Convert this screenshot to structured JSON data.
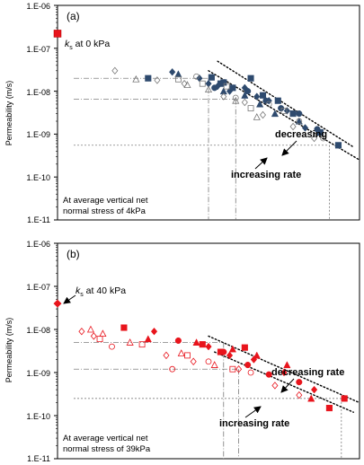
{
  "chart_data": [
    {
      "type": "scatter",
      "panel_label": "(a)",
      "ylabel": "Permeability (m/s)",
      "yscale": "log",
      "ylim": [
        1e-11,
        1e-06
      ],
      "ytick_labels": [
        "1.E-06",
        "1.E-07",
        "1.E-08",
        "1.E-09",
        "1.E-10",
        "1.E-11"
      ],
      "ks_label_sym": "k",
      "ks_label_sub": "s",
      "ks_label_rest": " at 0 kPa",
      "ks_value": 2.2e-07,
      "note_lines": [
        "At average vertical net",
        "normal stress of 4kPa"
      ],
      "annotations": [
        "decreasing",
        "increasing rate"
      ],
      "colors": {
        "filled": "#2e4a6e",
        "open": "#777777",
        "ks": "#e8141c"
      },
      "series": [
        {
          "style": "filled",
          "marker": "square",
          "x": [
            0.3,
            0.51,
            0.54,
            0.55,
            0.58,
            0.64,
            0.68,
            0.73,
            0.78,
            0.87,
            0.93
          ],
          "y": [
            2e-08,
            2.1e-08,
            1.5e-08,
            1.6e-08,
            1.2e-08,
            2e-08,
            8e-09,
            6e-09,
            3e-09,
            1.1e-09,
            5.5e-10
          ]
        },
        {
          "style": "filled",
          "marker": "diamond",
          "x": [
            0.38,
            0.47,
            0.5,
            0.53,
            0.57,
            0.62,
            0.66,
            0.7,
            0.76,
            0.82
          ],
          "y": [
            2.8e-08,
            2e-08,
            1.5e-08,
            1.3e-08,
            1e-08,
            1.2e-08,
            7.5e-09,
            6e-09,
            3.5e-09,
            1.4e-09
          ]
        },
        {
          "style": "filled",
          "marker": "triangle",
          "x": [
            0.4,
            0.55,
            0.62,
            0.67,
            0.72,
            0.8
          ],
          "y": [
            2.5e-08,
            1e-08,
            8e-09,
            5e-09,
            3e-09,
            2e-09
          ]
        },
        {
          "style": "filled",
          "marker": "circle",
          "x": [
            0.52,
            0.63,
            0.69,
            0.74,
            0.8,
            0.86
          ],
          "y": [
            1.2e-08,
            1e-08,
            6e-09,
            4e-09,
            3e-09,
            1.3e-09
          ]
        },
        {
          "style": "open",
          "marker": "diamond",
          "x": [
            0.19,
            0.33,
            0.42,
            0.55,
            0.62,
            0.68,
            0.78,
            0.85
          ],
          "y": [
            3e-08,
            1.8e-08,
            1.5e-08,
            7.5e-09,
            5.5e-09,
            2.8e-09,
            1.5e-09,
            8e-10
          ]
        },
        {
          "style": "open",
          "marker": "triangle",
          "x": [
            0.26,
            0.43,
            0.5,
            0.59,
            0.66
          ],
          "y": [
            1.9e-08,
            1.4e-08,
            1.1e-08,
            6e-09,
            2.5e-09
          ]
        },
        {
          "style": "open",
          "marker": "square",
          "x": [
            0.4,
            0.48,
            0.56,
            0.64,
            0.75
          ],
          "y": [
            1.9e-08,
            1.5e-08,
            1.3e-08,
            4e-09,
            3.5e-09
          ]
        },
        {
          "style": "open",
          "marker": "circle",
          "x": [
            0.46,
            0.59,
            0.7,
            0.8,
            0.88
          ],
          "y": [
            2.2e-08,
            7e-09,
            5e-09,
            2e-09,
            8e-10
          ]
        }
      ],
      "fit_lines": [
        {
          "x": [
            0.53,
            0.98
          ],
          "y": [
            5e-08,
            5e-10
          ]
        },
        {
          "x": [
            0.5,
            1.0
          ],
          "y": [
            3e-08,
            2.5e-10
          ]
        }
      ],
      "guides": [
        {
          "y": 2e-08,
          "x_end": 0.5
        },
        {
          "y": 6.5e-09,
          "x_end": 0.59
        },
        {
          "y": 5.5e-10,
          "x_end": 0.9
        }
      ]
    },
    {
      "type": "scatter",
      "panel_label": "(b)",
      "ylabel": "Permeability (m/s)",
      "yscale": "log",
      "ylim": [
        1e-11,
        1e-06
      ],
      "ytick_labels": [
        "1.E-06",
        "1.E-07",
        "1.E-08",
        "1.E-09",
        "1.E-10",
        "1.E-11"
      ],
      "ks_label_sym": "k",
      "ks_label_sub": "s",
      "ks_label_rest": " at 40 kPa",
      "ks_value": 4e-08,
      "note_lines": [
        "At average vertical net",
        "normal stress of 39kPa"
      ],
      "annotations": [
        "decreasing rate",
        "increasing rate"
      ],
      "colors": {
        "filled": "#e8141c",
        "open": "#e8141c"
      },
      "series": [
        {
          "style": "filled",
          "marker": "square",
          "x": [
            0.22,
            0.48,
            0.54,
            0.62,
            0.9,
            0.95
          ],
          "y": [
            1.1e-08,
            4.5e-09,
            3e-09,
            3.8e-09,
            1.5e-10,
            2.5e-10
          ]
        },
        {
          "style": "filled",
          "marker": "diamond",
          "x": [
            0.32,
            0.5,
            0.57,
            0.65,
            0.75,
            0.85
          ],
          "y": [
            9e-09,
            4e-09,
            2.5e-09,
            2e-09,
            1e-09,
            4e-10
          ]
        },
        {
          "style": "filled",
          "marker": "triangle",
          "x": [
            0.3,
            0.46,
            0.58,
            0.66,
            0.76,
            0.84
          ],
          "y": [
            6e-09,
            5e-09,
            3.5e-09,
            2.5e-09,
            1.5e-09,
            2.5e-10
          ]
        },
        {
          "style": "filled",
          "marker": "circle",
          "x": [
            0.4,
            0.55,
            0.63,
            0.7,
            0.8
          ],
          "y": [
            5.5e-09,
            3e-09,
            1.5e-09,
            9e-10,
            6e-10
          ]
        },
        {
          "style": "open",
          "marker": "diamond",
          "x": [
            0.08,
            0.12,
            0.36,
            0.45,
            0.6,
            0.72,
            0.8
          ],
          "y": [
            9e-09,
            7e-09,
            2.5e-09,
            1.8e-09,
            1.2e-09,
            5e-10,
            3e-10
          ]
        },
        {
          "style": "open",
          "marker": "triangle",
          "x": [
            0.11,
            0.15,
            0.24,
            0.41,
            0.52
          ],
          "y": [
            1e-08,
            8e-09,
            5e-09,
            2.8e-09,
            1.5e-09
          ]
        },
        {
          "style": "open",
          "marker": "square",
          "x": [
            0.14,
            0.28,
            0.43,
            0.58
          ],
          "y": [
            6e-09,
            4.5e-09,
            2.5e-09,
            1.2e-09
          ]
        },
        {
          "style": "open",
          "marker": "circle",
          "x": [
            0.18,
            0.38,
            0.5,
            0.64
          ],
          "y": [
            4e-09,
            1.2e-09,
            1.8e-09,
            1e-09
          ]
        }
      ],
      "fit_lines": [
        {
          "x": [
            0.5,
            1.0
          ],
          "y": [
            7e-09,
            2e-10
          ]
        },
        {
          "x": [
            0.52,
            0.98
          ],
          "y": [
            3e-09,
            1.2e-10
          ]
        }
      ],
      "guides": [
        {
          "y": 5e-09,
          "x_end": 0.55
        },
        {
          "y": 1.2e-09,
          "x_end": 0.6
        },
        {
          "y": 2.5e-10,
          "x_end": 0.94
        }
      ]
    }
  ]
}
